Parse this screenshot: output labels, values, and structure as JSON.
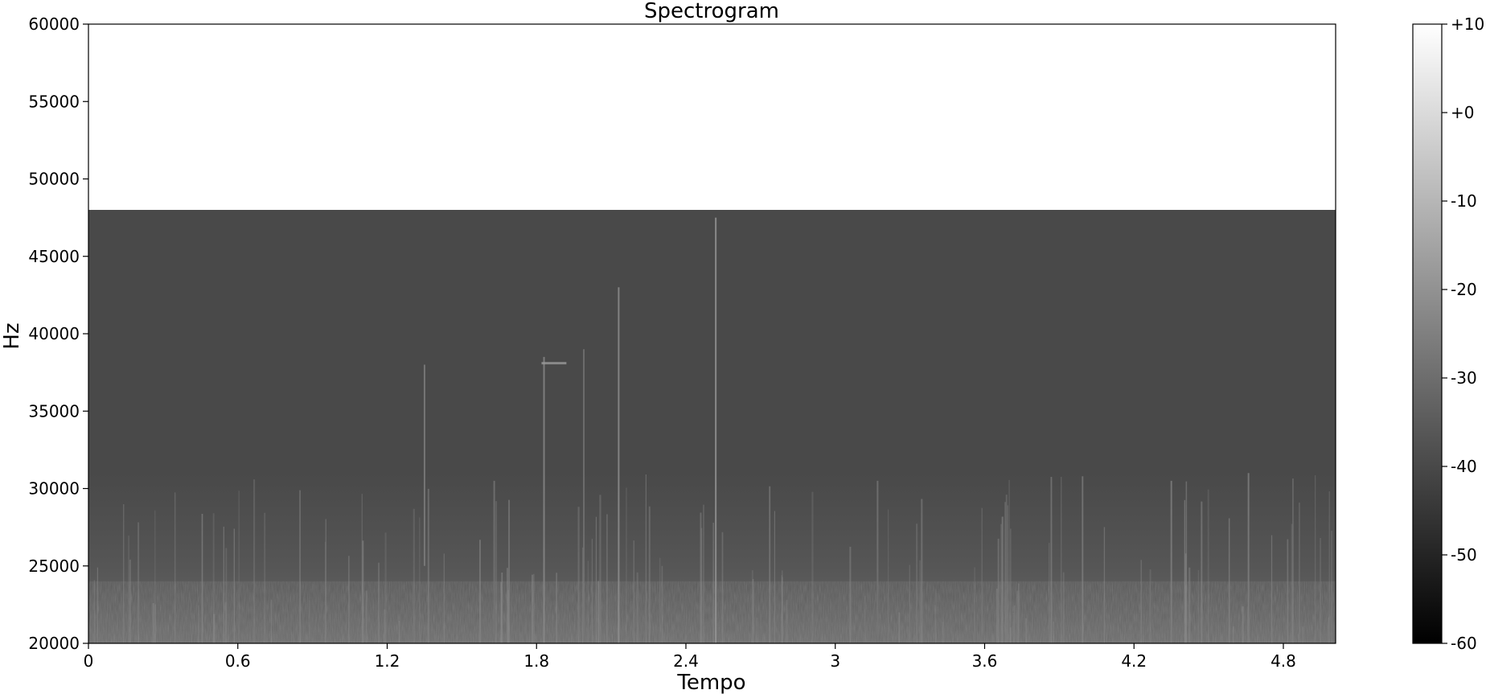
{
  "chart_data": {
    "type": "heatmap",
    "title": "Spectrogram",
    "xlabel": "Tempo",
    "ylabel": "Hz",
    "xlim": [
      0,
      5.01
    ],
    "ylim": [
      20000,
      60000
    ],
    "xticks": [
      0,
      0.6,
      1.2,
      1.8,
      2.4,
      3,
      3.6,
      4.2,
      4.8
    ],
    "xtick_labels": [
      "0",
      "0.6",
      "1.2",
      "1.8",
      "2.4",
      "3",
      "3.6",
      "4.2",
      "4.8"
    ],
    "yticks": [
      20000,
      25000,
      30000,
      35000,
      40000,
      45000,
      50000,
      55000,
      60000
    ],
    "ytick_labels": [
      "20000",
      "25000",
      "30000",
      "35000",
      "40000",
      "45000",
      "50000",
      "55000",
      "60000"
    ],
    "data_max_freq": 48000,
    "colormap": "gray",
    "background_level_db": -40,
    "colorbar": {
      "vmin": -60,
      "vmax": 10,
      "ticks": [
        10,
        0,
        -10,
        -20,
        -30,
        -40,
        -50,
        -60
      ],
      "tick_labels": [
        "+10",
        "+0",
        "-10",
        "-20",
        "-30",
        "-40",
        "-50",
        "-60"
      ]
    },
    "features": [
      {
        "time": 1.35,
        "freq_low": 25000,
        "freq_high": 38000,
        "level_db": -25
      },
      {
        "time": 1.63,
        "freq_low": 20000,
        "freq_high": 30500,
        "level_db": -28
      },
      {
        "time": 1.83,
        "freq_low": 20000,
        "freq_high": 38500,
        "level_db": -22
      },
      {
        "time": 1.99,
        "freq_low": 20000,
        "freq_high": 39000,
        "level_db": -28
      },
      {
        "time": 2.13,
        "freq_low": 20000,
        "freq_high": 43000,
        "level_db": -20
      },
      {
        "time": 2.52,
        "freq_low": 20000,
        "freq_high": 47500,
        "level_db": -18
      },
      {
        "time": 3.17,
        "freq_low": 20000,
        "freq_high": 30500,
        "level_db": -28
      },
      {
        "time": 4.35,
        "freq_low": 20000,
        "freq_high": 30500,
        "level_db": -25
      },
      {
        "time": 4.66,
        "freq_low": 20000,
        "freq_high": 31000,
        "level_db": -25
      }
    ],
    "tone": {
      "time_start": 1.82,
      "time_end": 1.92,
      "freq": 38100,
      "level_db": -18
    }
  }
}
